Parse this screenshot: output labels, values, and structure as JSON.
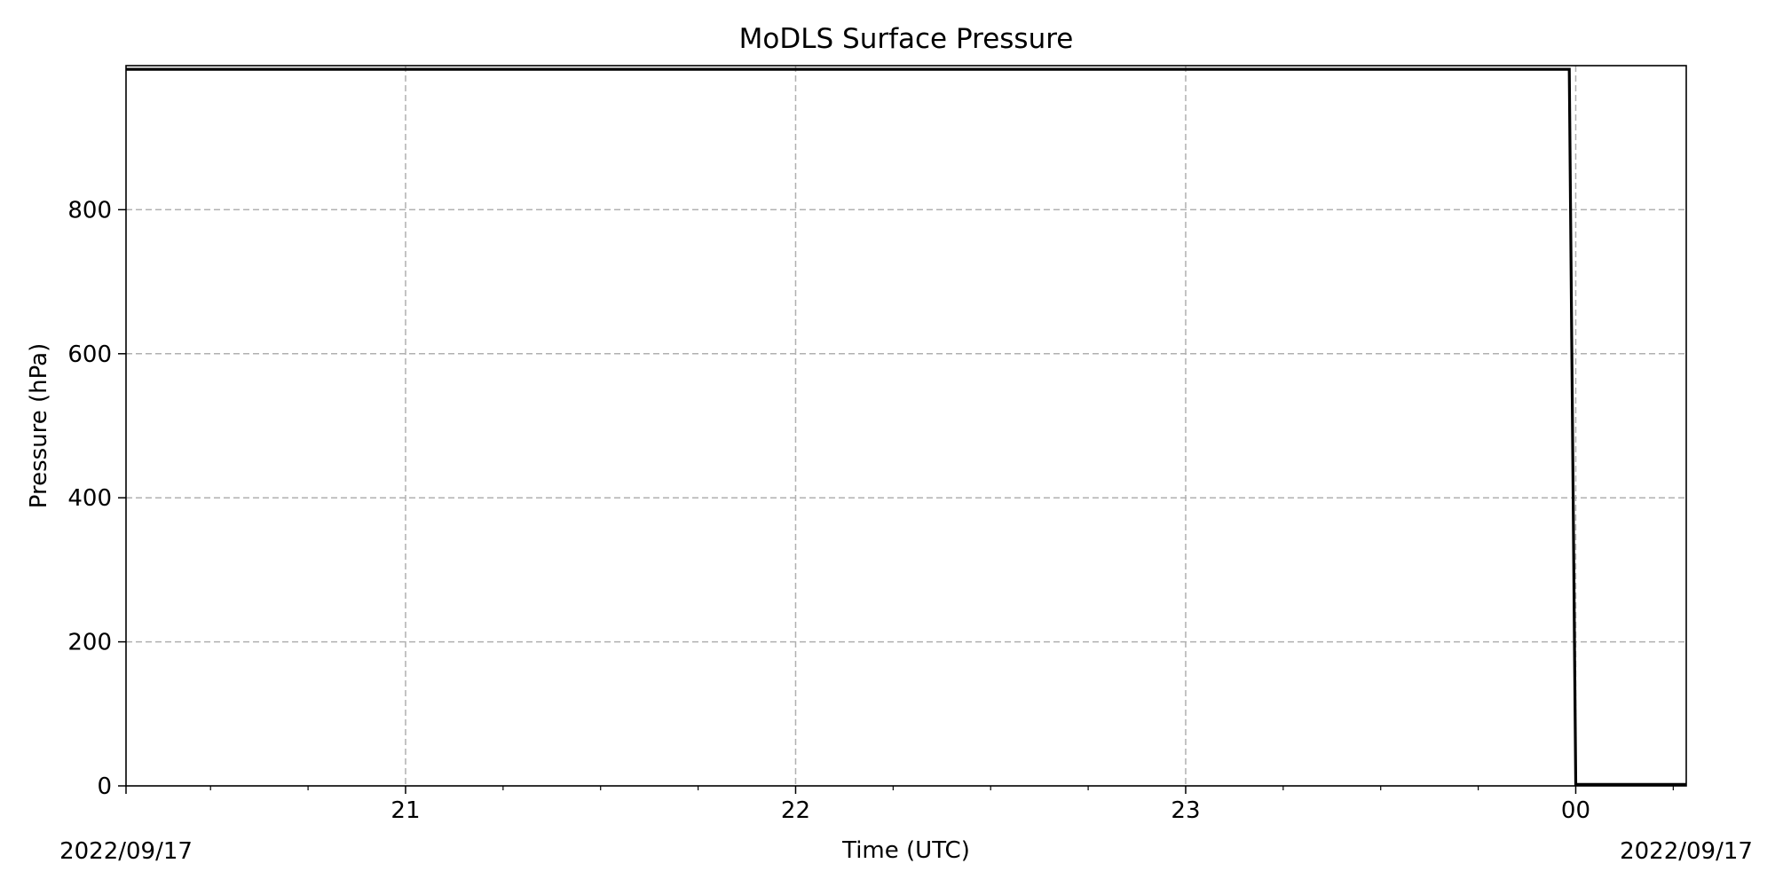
{
  "chart_data": {
    "type": "line",
    "title": "MoDLS Surface Pressure",
    "xlabel": "Time (UTC)",
    "ylabel": "Pressure (hPa)",
    "x_tick_labels": [
      "21",
      "22",
      "23",
      "00"
    ],
    "date_left": "2022/09/17",
    "date_right": "2022/09/17",
    "xlim": [
      "2022-09-17T20:17",
      "2022-09-18T00:17"
    ],
    "ylim": [
      0,
      1000
    ],
    "y_ticks": [
      0,
      200,
      400,
      600,
      800
    ],
    "grid": true,
    "series": [
      {
        "color": "#000000",
        "x": [
          "2022-09-17T20:17",
          "2022-09-17T21:00",
          "2022-09-17T22:00",
          "2022-09-17T23:00",
          "2022-09-17T23:59",
          "2022-09-18T00:00",
          "2022-09-18T00:05",
          "2022-09-18T00:10",
          "2022-09-18T00:17"
        ],
        "y": [
          995,
          995,
          995,
          995,
          995,
          2,
          2,
          2,
          2
        ]
      }
    ]
  }
}
